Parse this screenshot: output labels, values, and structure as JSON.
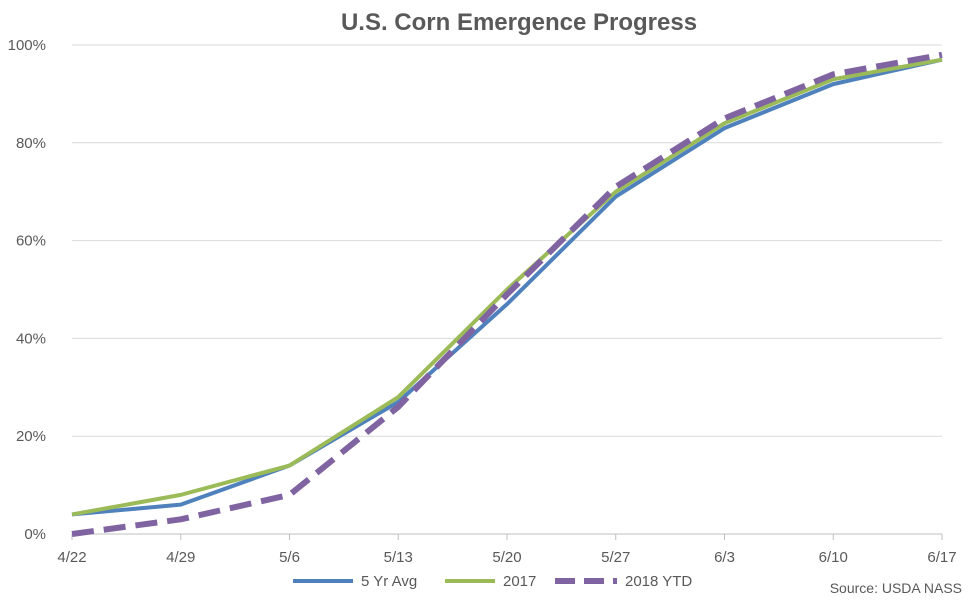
{
  "chart_data": {
    "type": "line",
    "title": "U.S. Corn Emergence Progress",
    "categories": [
      "4/22",
      "4/29",
      "5/6",
      "5/13",
      "5/20",
      "5/27",
      "6/3",
      "6/10",
      "6/17"
    ],
    "y_tick_labels": [
      "0%",
      "20%",
      "40%",
      "60%",
      "80%",
      "100%"
    ],
    "ylim": [
      0,
      100
    ],
    "grid": true,
    "legend_position": "bottom",
    "series": [
      {
        "name": "5 Yr Avg",
        "color": "#4f81bd",
        "dash": "solid",
        "values": [
          4,
          6,
          14,
          27,
          47,
          69,
          83,
          92,
          97
        ]
      },
      {
        "name": "2017",
        "color": "#9bbb59",
        "dash": "solid",
        "values": [
          4,
          8,
          14,
          28,
          50,
          70,
          84,
          93,
          97
        ]
      },
      {
        "name": "2018 YTD",
        "color": "#8064a2",
        "dash": "dashed",
        "values": [
          0,
          3,
          8,
          26,
          49,
          71,
          85,
          94,
          98
        ]
      }
    ],
    "source": "Source: USDA NASS"
  }
}
